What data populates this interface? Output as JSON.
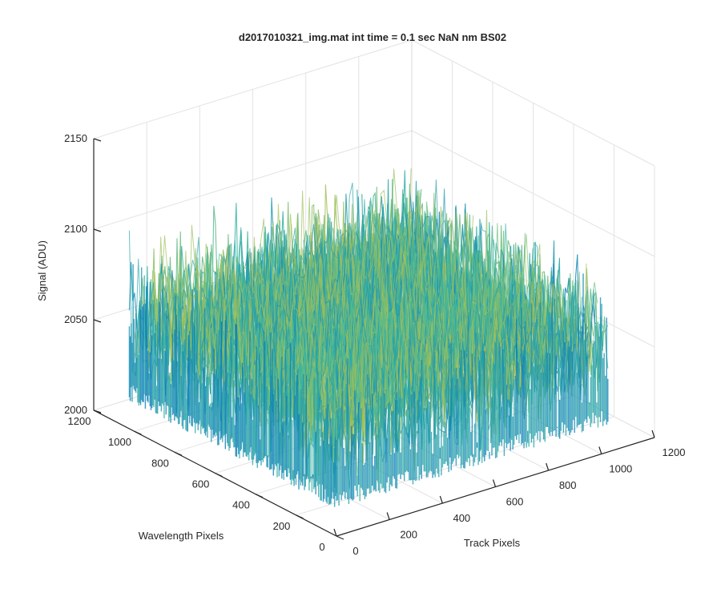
{
  "chart_data": {
    "type": "surface",
    "title": "d2017010321_img.mat int time = 0.1 sec  NaN nm BS02",
    "xlabel": "Track Pixels",
    "ylabel": "Wavelength Pixels",
    "zlabel": "Signal (ADU)",
    "xlim": [
      0,
      1200
    ],
    "ylim": [
      0,
      1200
    ],
    "zlim": [
      2000,
      2150
    ],
    "x_ticks": [
      {
        "value": 0,
        "label": "0"
      },
      {
        "value": 200,
        "label": "200"
      },
      {
        "value": 400,
        "label": "400"
      },
      {
        "value": 600,
        "label": "600"
      },
      {
        "value": 800,
        "label": "800"
      },
      {
        "value": 1000,
        "label": "1000"
      },
      {
        "value": 1200,
        "label": "1200"
      }
    ],
    "y_ticks": [
      {
        "value": 0,
        "label": "0"
      },
      {
        "value": 200,
        "label": "200"
      },
      {
        "value": 400,
        "label": "400"
      },
      {
        "value": 600,
        "label": "600"
      },
      {
        "value": 800,
        "label": "800"
      },
      {
        "value": 1000,
        "label": "1000"
      },
      {
        "value": 1200,
        "label": "1200"
      }
    ],
    "z_ticks": [
      {
        "value": 2000,
        "label": "2000"
      },
      {
        "value": 2050,
        "label": "2050"
      },
      {
        "value": 2100,
        "label": "2100"
      },
      {
        "value": 2150,
        "label": "2150"
      }
    ],
    "surface_extent": {
      "x": [
        0,
        1024
      ],
      "y": [
        0,
        1024
      ]
    },
    "signal_mean": 2062,
    "signal_range": [
      2015,
      2135
    ],
    "colormap": "parula",
    "colors": {
      "low": "#0072bd",
      "mid": "#3ab8a0",
      "high": "#e6c52b"
    },
    "grid": true,
    "box": "open"
  }
}
